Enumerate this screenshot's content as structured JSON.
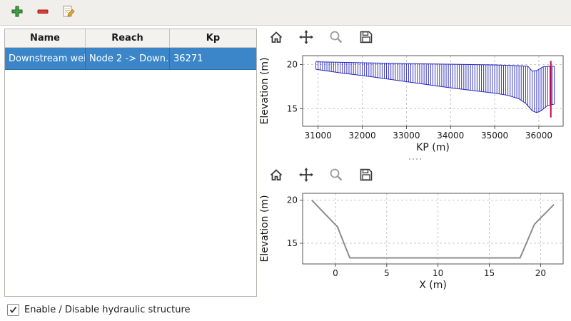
{
  "colors": {
    "selection": "#3a86c8",
    "hatch_blue": "#2626bb",
    "structure_marker_red": "#d2004b",
    "cross_section_gray": "#8c8c8c"
  },
  "main_toolbar": {
    "icons": [
      {
        "name": "add-structure"
      },
      {
        "name": "remove-structure"
      },
      {
        "name": "edit-structure"
      }
    ]
  },
  "structures_table": {
    "headers": [
      "Name",
      "Reach",
      "Kp"
    ],
    "rows": [
      {
        "name": "Downstream weir",
        "reach": "Node 2 -> Down…",
        "kp": "36271"
      }
    ]
  },
  "footer": {
    "checkbox_label": "Enable / Disable hydraulic structure",
    "checked": true
  },
  "plot_toolbar": {
    "icons": [
      "home",
      "pan",
      "zoom",
      "save"
    ]
  },
  "chart_data": [
    {
      "id": "kp_profile",
      "type": "area",
      "title": "",
      "xlabel": "KP (m)",
      "ylabel": "Elevation (m)",
      "xlim": [
        30650,
        36550
      ],
      "ylim": [
        13.0,
        21.0
      ],
      "xticks": [
        31000,
        32000,
        33000,
        34000,
        35000,
        36000
      ],
      "yticks": [
        15,
        20
      ],
      "grid": true,
      "hatch": {
        "color": "#2626bb",
        "step": 50,
        "x_start": 30950,
        "x_end": 36350,
        "top_profile": [
          [
            30950,
            20.3
          ],
          [
            33000,
            20.1
          ],
          [
            35000,
            19.95
          ],
          [
            35600,
            19.85
          ],
          [
            35750,
            19.8
          ],
          [
            35850,
            19.25
          ],
          [
            35950,
            19.3
          ],
          [
            36100,
            19.75
          ],
          [
            36350,
            19.8
          ]
        ],
        "bottom_profile": [
          [
            30950,
            19.45
          ],
          [
            31500,
            19.05
          ],
          [
            32000,
            18.75
          ],
          [
            32500,
            18.4
          ],
          [
            33000,
            18.05
          ],
          [
            33500,
            17.7
          ],
          [
            34000,
            17.35
          ],
          [
            34500,
            17.05
          ],
          [
            35000,
            16.75
          ],
          [
            35300,
            16.5
          ],
          [
            35550,
            16.1
          ],
          [
            35700,
            15.6
          ],
          [
            35850,
            14.75
          ],
          [
            35950,
            14.55
          ],
          [
            36050,
            14.75
          ],
          [
            36200,
            15.35
          ],
          [
            36350,
            15.5
          ]
        ]
      },
      "vline": {
        "x": 36271,
        "y1": 14.0,
        "y2": 20.4,
        "color": "#d2004b",
        "label": "structure-location"
      }
    },
    {
      "id": "cross_section",
      "type": "line",
      "title": "",
      "xlabel": "X (m)",
      "ylabel": "Elevation (m)",
      "xlim": [
        -3.2,
        22.2
      ],
      "ylim": [
        12.6,
        20.8
      ],
      "xticks": [
        0,
        5,
        10,
        15,
        20
      ],
      "yticks": [
        15,
        20
      ],
      "grid": true,
      "series": [
        {
          "name": "cross-section-profile",
          "color": "#8c8c8c",
          "width": 2,
          "points": [
            [
              -2.3,
              20.0
            ],
            [
              0.2,
              16.9
            ],
            [
              1.4,
              13.3
            ],
            [
              18.0,
              13.3
            ],
            [
              19.4,
              17.2
            ],
            [
              21.3,
              19.5
            ]
          ]
        }
      ]
    }
  ]
}
